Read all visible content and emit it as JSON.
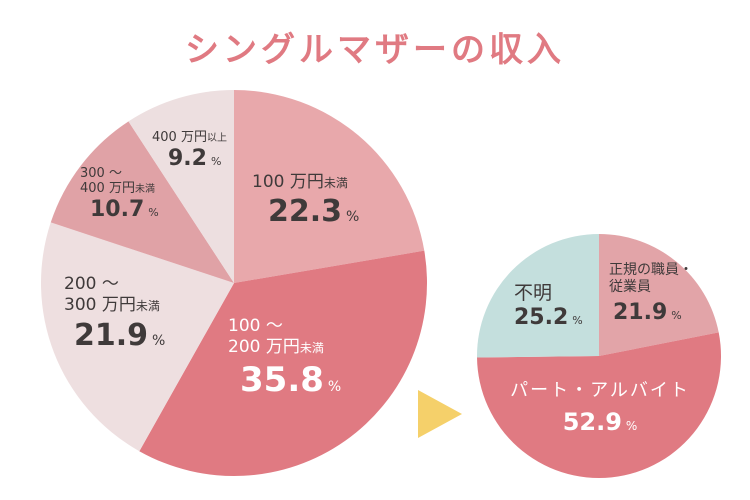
{
  "title": "シングルマザーの収入",
  "title_color": "#e07a82",
  "arrow_color": "#f5d06a",
  "chart_data": [
    {
      "type": "pie",
      "start": "top",
      "direction": "clockwise",
      "slices": [
        {
          "label": "100万円未満",
          "cat_main": "100 万円",
          "cat_small": "未満",
          "value": 22.3,
          "value_text": "22.3",
          "unit": "%",
          "color": "#e8a8ab"
        },
        {
          "label": "100〜200万円未満",
          "cat_line1": "100 〜",
          "cat_main": "200 万円",
          "cat_small": "未満",
          "value": 35.8,
          "value_text": "35.8",
          "unit": "%",
          "color": "#e07a82"
        },
        {
          "label": "200〜300万円未満",
          "cat_line1": "200 〜",
          "cat_main": "300 万円",
          "cat_small": "未満",
          "value": 21.9,
          "value_text": "21.9",
          "unit": "%",
          "color": "#eedfe0"
        },
        {
          "label": "300〜400万円未満",
          "cat_line1": "300 〜",
          "cat_main": "400 万円",
          "cat_small": "未満",
          "value": 10.7,
          "value_text": "10.7",
          "unit": "%",
          "color": "#e0a2a6"
        },
        {
          "label": "400万円以上",
          "cat_main": "400 万円",
          "cat_small": "以上",
          "value": 9.2,
          "value_text": "9.2",
          "unit": "%",
          "color": "#eddfe0"
        }
      ]
    },
    {
      "type": "pie",
      "start": "top",
      "direction": "clockwise",
      "slices": [
        {
          "label": "正規の職員・従業員",
          "cat_line1": "正規の職員・",
          "cat_main": "従業員",
          "value": 21.9,
          "value_text": "21.9",
          "unit": "%",
          "color": "#e2a4a8"
        },
        {
          "label": "パート・アルバイト",
          "cat_main": "パート・アルバイト",
          "value": 52.9,
          "value_text": "52.9",
          "unit": "%",
          "color": "#e07a82"
        },
        {
          "label": "不明",
          "cat_main": "不明",
          "value": 25.2,
          "value_text": "25.2",
          "unit": "%",
          "color": "#c4dfdd"
        }
      ]
    }
  ]
}
